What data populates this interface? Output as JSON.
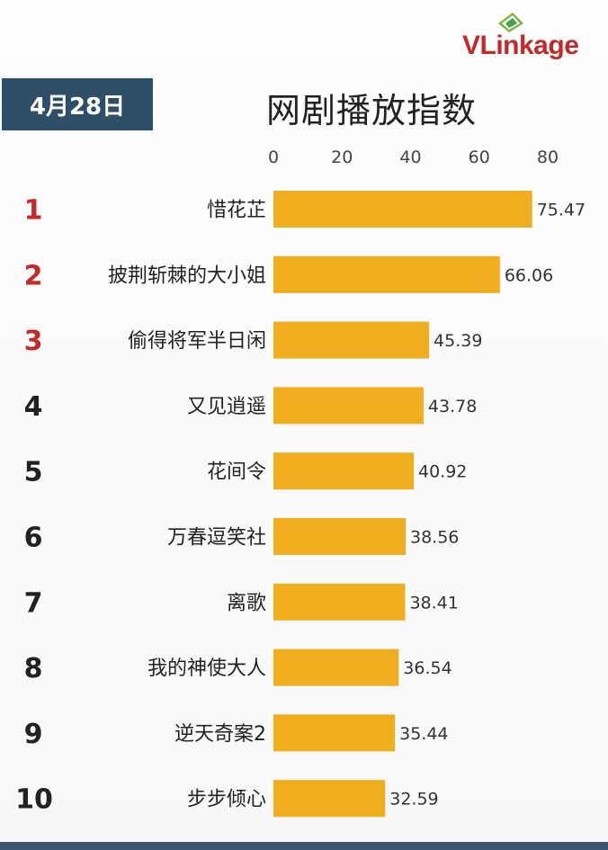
{
  "header": {
    "logo_text": "VLinkage",
    "date": "4月28日",
    "title": "网剧播放指数"
  },
  "colors": {
    "bar": "#F0AD1E",
    "date_box": "#2F4F68",
    "rank_top": "#C62828",
    "rank_other": "#222222"
  },
  "chart_data": {
    "type": "bar",
    "orientation": "horizontal",
    "title": "网剧播放指数",
    "xlim": [
      0,
      80
    ],
    "xticks": [
      0,
      20,
      40,
      60,
      80
    ],
    "grid": false,
    "ranks": [
      "1",
      "2",
      "3",
      "4",
      "5",
      "6",
      "7",
      "8",
      "9",
      "10"
    ],
    "categories": [
      "惜花芷",
      "披荆斩棘的大小姐",
      "偷得将军半日闲",
      "又见逍遥",
      "花间令",
      "万春逗笑社",
      "离歌",
      "我的神使大人",
      "逆天奇案2",
      "步步倾心"
    ],
    "values": [
      75.47,
      66.06,
      45.39,
      43.78,
      40.92,
      38.56,
      38.41,
      36.54,
      35.44,
      32.59
    ],
    "value_labels": [
      "75.47",
      "66.06",
      "45.39",
      "43.78",
      "40.92",
      "38.56",
      "38.41",
      "36.54",
      "35.44",
      "32.59"
    ]
  }
}
